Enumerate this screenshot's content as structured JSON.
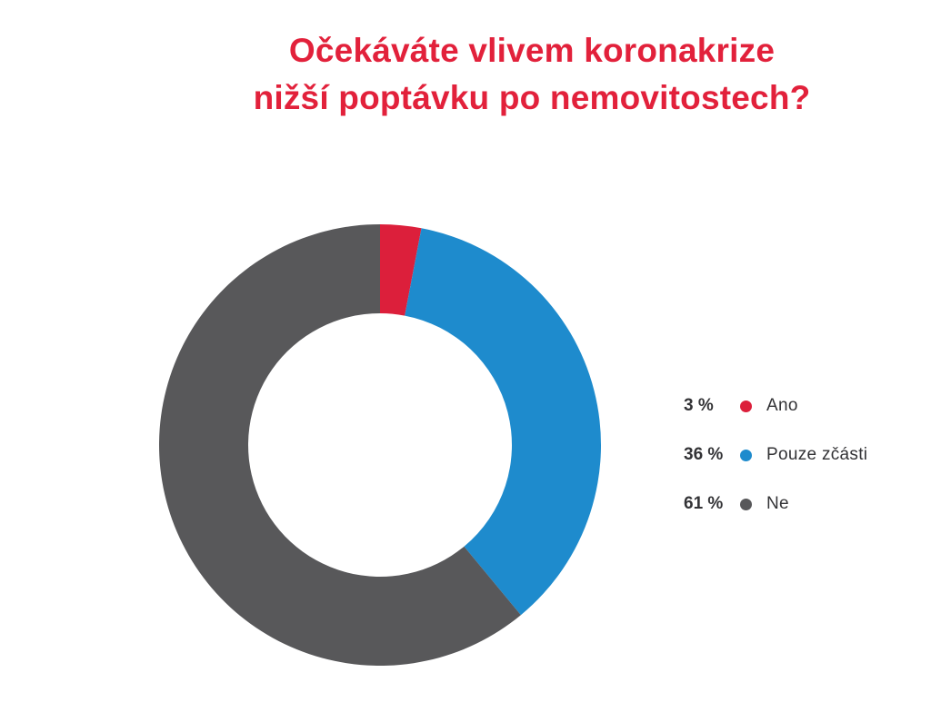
{
  "chart_data": {
    "type": "pie",
    "title_lines": [
      "Očekáváte vlivem koronakrize",
      "nižší poptávku po nemovitostech?"
    ],
    "categories": [
      "Ano",
      "Pouze zčásti",
      "Ne"
    ],
    "values": [
      3,
      36,
      61
    ],
    "value_labels": [
      "3 %",
      "36 %",
      "61 %"
    ],
    "colors": [
      "#dc1f3b",
      "#1e8bcd",
      "#58585a"
    ],
    "donut": true,
    "legend_placement": "right"
  }
}
